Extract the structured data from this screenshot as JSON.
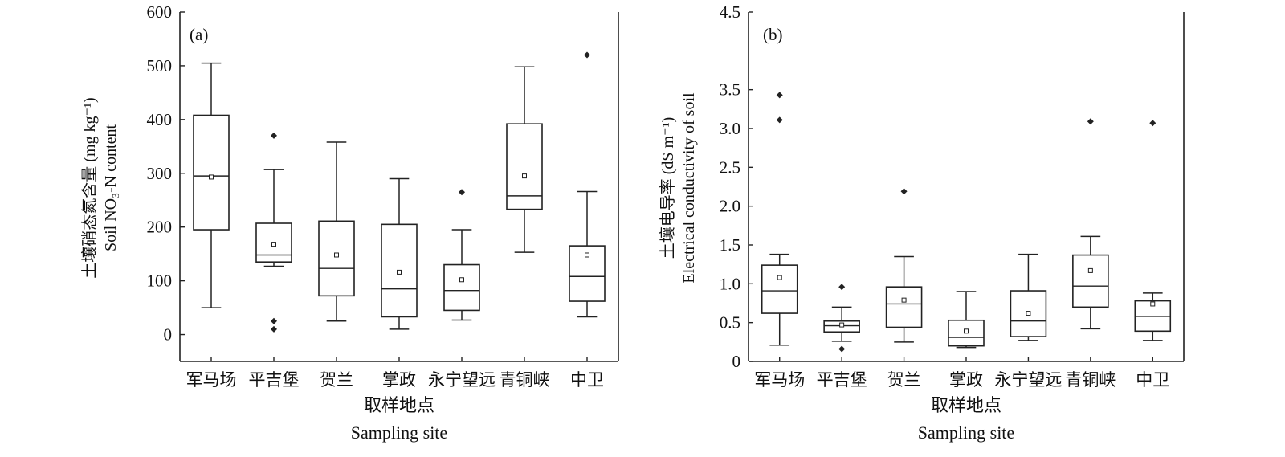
{
  "chart_data": [
    {
      "type": "box",
      "panel_label": "(a)",
      "xlabel": [
        "取样地点",
        "Sampling site"
      ],
      "ylabel": [
        "土壤硝态氮含量 (mg kg⁻¹)",
        "Soil NO₃-N content"
      ],
      "ylim": [
        -50,
        600
      ],
      "yticks": [
        "0",
        "100",
        "200",
        "300",
        "400",
        "500",
        "600"
      ],
      "categories": [
        "军马场",
        "平吉堡",
        "贺兰",
        "掌政",
        "永宁望远",
        "青铜峡",
        "中卫"
      ],
      "boxes": [
        {
          "min": 50,
          "q1": 195,
          "median": 295,
          "q3": 408,
          "max": 505,
          "mean": 293,
          "outliers": []
        },
        {
          "min": 127,
          "q1": 135,
          "median": 148,
          "q3": 207,
          "max": 307,
          "mean": 168,
          "outliers": [
            370,
            25,
            10
          ]
        },
        {
          "min": 25,
          "q1": 72,
          "median": 123,
          "q3": 211,
          "max": 358,
          "mean": 148,
          "outliers": []
        },
        {
          "min": 10,
          "q1": 33,
          "median": 85,
          "q3": 205,
          "max": 290,
          "mean": 116,
          "outliers": []
        },
        {
          "min": 27,
          "q1": 45,
          "median": 82,
          "q3": 130,
          "max": 195,
          "mean": 102,
          "outliers": [
            265
          ]
        },
        {
          "min": 153,
          "q1": 233,
          "median": 258,
          "q3": 392,
          "max": 498,
          "mean": 295,
          "outliers": []
        },
        {
          "min": 33,
          "q1": 62,
          "median": 108,
          "q3": 165,
          "max": 266,
          "mean": 148,
          "outliers": [
            520
          ]
        }
      ]
    },
    {
      "type": "box",
      "panel_label": "(b)",
      "xlabel": [
        "取样地点",
        "Sampling site"
      ],
      "ylabel": [
        "土壤电导率 (dS m⁻¹)",
        "Electrical conductivity of soil"
      ],
      "ylim": [
        0,
        4.5
      ],
      "yticks": [
        "0",
        "0.5",
        "1.0",
        "1.5",
        "2.0",
        "2.5",
        "3.0",
        "3.5",
        "4.5"
      ],
      "ytick_values": [
        0,
        0.5,
        1.0,
        1.5,
        2.0,
        2.5,
        3.0,
        3.5,
        4.5
      ],
      "categories": [
        "军马场",
        "平吉堡",
        "贺兰",
        "掌政",
        "永宁望远",
        "青铜峡",
        "中卫"
      ],
      "boxes": [
        {
          "min": 0.21,
          "q1": 0.62,
          "median": 0.91,
          "q3": 1.24,
          "max": 1.38,
          "mean": 1.08,
          "outliers": [
            3.43,
            3.11
          ]
        },
        {
          "min": 0.26,
          "q1": 0.38,
          "median": 0.46,
          "q3": 0.52,
          "max": 0.7,
          "mean": 0.47,
          "outliers": [
            0.96,
            0.16
          ]
        },
        {
          "min": 0.25,
          "q1": 0.44,
          "median": 0.74,
          "q3": 0.96,
          "max": 1.35,
          "mean": 0.79,
          "outliers": [
            2.19
          ]
        },
        {
          "min": 0.18,
          "q1": 0.2,
          "median": 0.31,
          "q3": 0.53,
          "max": 0.9,
          "mean": 0.39,
          "outliers": []
        },
        {
          "min": 0.27,
          "q1": 0.32,
          "median": 0.52,
          "q3": 0.91,
          "max": 1.38,
          "mean": 0.62,
          "outliers": []
        },
        {
          "min": 0.42,
          "q1": 0.7,
          "median": 0.97,
          "q3": 1.37,
          "max": 1.61,
          "mean": 1.17,
          "outliers": [
            3.09
          ]
        },
        {
          "min": 0.27,
          "q1": 0.39,
          "median": 0.58,
          "q3": 0.78,
          "max": 0.88,
          "mean": 0.74,
          "outliers": [
            3.07
          ]
        }
      ]
    }
  ]
}
